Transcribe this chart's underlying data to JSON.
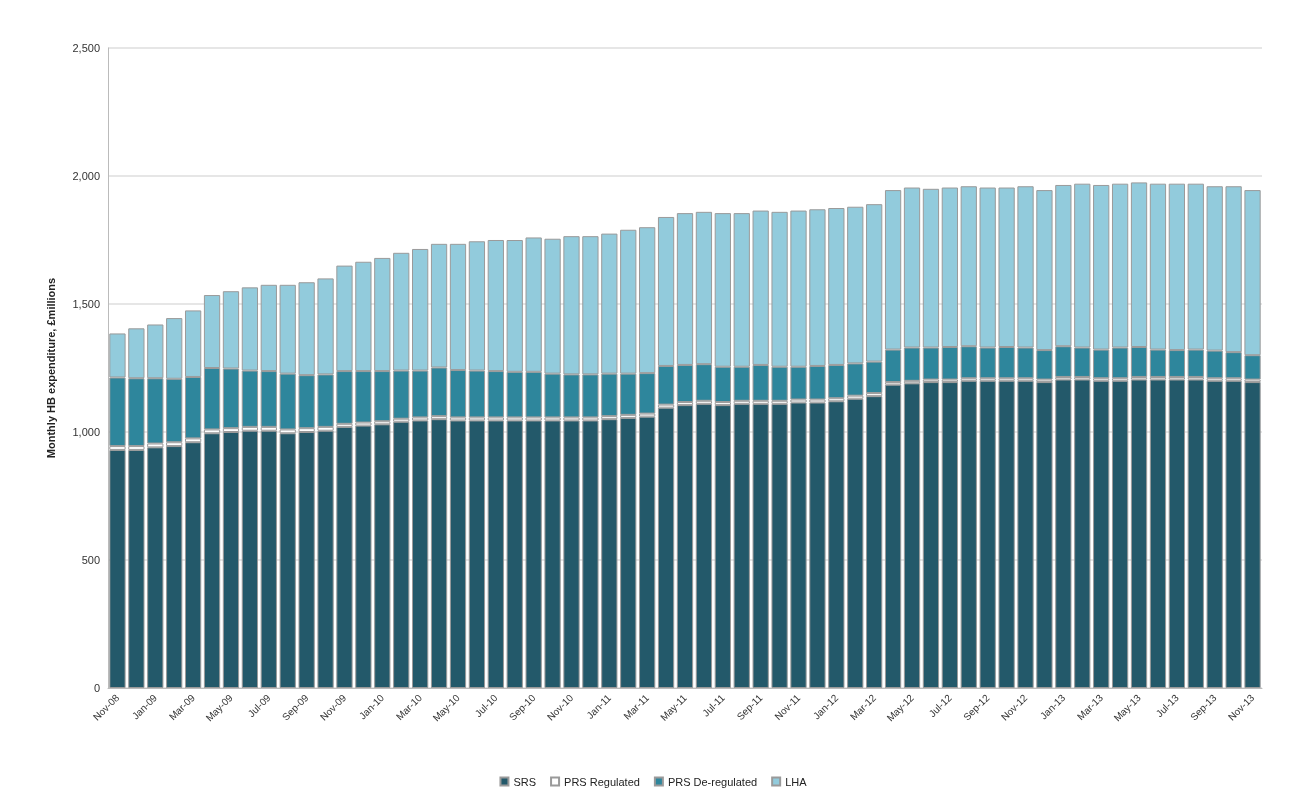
{
  "chart_data": {
    "type": "bar",
    "stacked": true,
    "ylabel": "Monthly HB expenditure, £millions",
    "categories": [
      "Nov-08",
      null,
      "Jan-09",
      null,
      "Mar-09",
      null,
      "May-09",
      null,
      "Jul-09",
      null,
      "Sep-09",
      null,
      "Nov-09",
      null,
      "Jan-10",
      null,
      "Mar-10",
      null,
      "May-10",
      null,
      "Jul-10",
      null,
      "Sep-10",
      null,
      "Nov-10",
      null,
      "Jan-11",
      null,
      "Mar-11",
      null,
      "May-11",
      null,
      "Jul-11",
      null,
      "Sep-11",
      null,
      "Nov-11",
      null,
      "Jan-12",
      null,
      "Mar-12",
      null,
      "May-12",
      null,
      "Jul-12",
      null,
      "Sep-12",
      null,
      "Nov-12",
      null,
      "Jan-13",
      null,
      "Mar-13",
      null,
      "May-13",
      null,
      "Jul-13",
      null,
      "Sep-13",
      null,
      "Nov-13"
    ],
    "series": [
      {
        "name": "SRS",
        "color": "#23596a",
        "values": [
          930,
          930,
          940,
          945,
          960,
          995,
          1000,
          1005,
          1005,
          995,
          1000,
          1005,
          1020,
          1025,
          1030,
          1040,
          1045,
          1050,
          1045,
          1045,
          1045,
          1045,
          1045,
          1045,
          1045,
          1045,
          1050,
          1055,
          1060,
          1095,
          1105,
          1110,
          1105,
          1110,
          1110,
          1110,
          1115,
          1115,
          1120,
          1130,
          1140,
          1185,
          1190,
          1195,
          1195,
          1200,
          1200,
          1200,
          1200,
          1195,
          1205,
          1205,
          1200,
          1200,
          1205,
          1205,
          1205,
          1205,
          1200,
          1200,
          1195
        ]
      },
      {
        "name": "PRS Regulated",
        "color": "#ffffff",
        "values": [
          15,
          15,
          15,
          15,
          15,
          15,
          15,
          15,
          15,
          15,
          15,
          15,
          12,
          12,
          12,
          12,
          12,
          12,
          12,
          12,
          12,
          12,
          12,
          12,
          12,
          12,
          12,
          12,
          12,
          12,
          12,
          12,
          12,
          12,
          12,
          12,
          12,
          12,
          12,
          12,
          12,
          10,
          10,
          10,
          10,
          10,
          10,
          10,
          10,
          10,
          10,
          10,
          10,
          10,
          10,
          10,
          10,
          10,
          10,
          10,
          10
        ]
      },
      {
        "name": "PRS De-regulated",
        "color": "#2e869c",
        "values": [
          268,
          265,
          255,
          248,
          240,
          240,
          233,
          220,
          218,
          218,
          207,
          205,
          206,
          201,
          196,
          188,
          183,
          190,
          185,
          183,
          181,
          178,
          178,
          171,
          168,
          168,
          166,
          161,
          158,
          151,
          145,
          143,
          138,
          133,
          140,
          133,
          128,
          131,
          130,
          126,
          123,
          127,
          130,
          125,
          127,
          125,
          120,
          122,
          120,
          115,
          120,
          115,
          112,
          120,
          117,
          107,
          105,
          107,
          108,
          102,
          95
        ]
      },
      {
        "name": "LHA",
        "color": "#92cbdc",
        "values": [
          172,
          195,
          210,
          237,
          260,
          285,
          302,
          325,
          337,
          347,
          363,
          375,
          412,
          427,
          442,
          460,
          475,
          483,
          493,
          505,
          512,
          515,
          525,
          527,
          540,
          540,
          547,
          562,
          570,
          582,
          593,
          595,
          600,
          600,
          603,
          605,
          610,
          612,
          613,
          612,
          615,
          623,
          625,
          620,
          623,
          625,
          625,
          623,
          630,
          625,
          630,
          640,
          643,
          640,
          643,
          648,
          650,
          648,
          642,
          648,
          645
        ]
      }
    ],
    "ylim": [
      0,
      2500
    ],
    "yticks": [
      0,
      500,
      {
        "value": 1000,
        "label": "1,000"
      },
      {
        "value": 1500,
        "label": "1,500"
      },
      {
        "value": 2000,
        "label": "2,000"
      },
      {
        "value": 2500,
        "label": "2,500"
      }
    ],
    "grid": "y",
    "legend": "bottom"
  }
}
